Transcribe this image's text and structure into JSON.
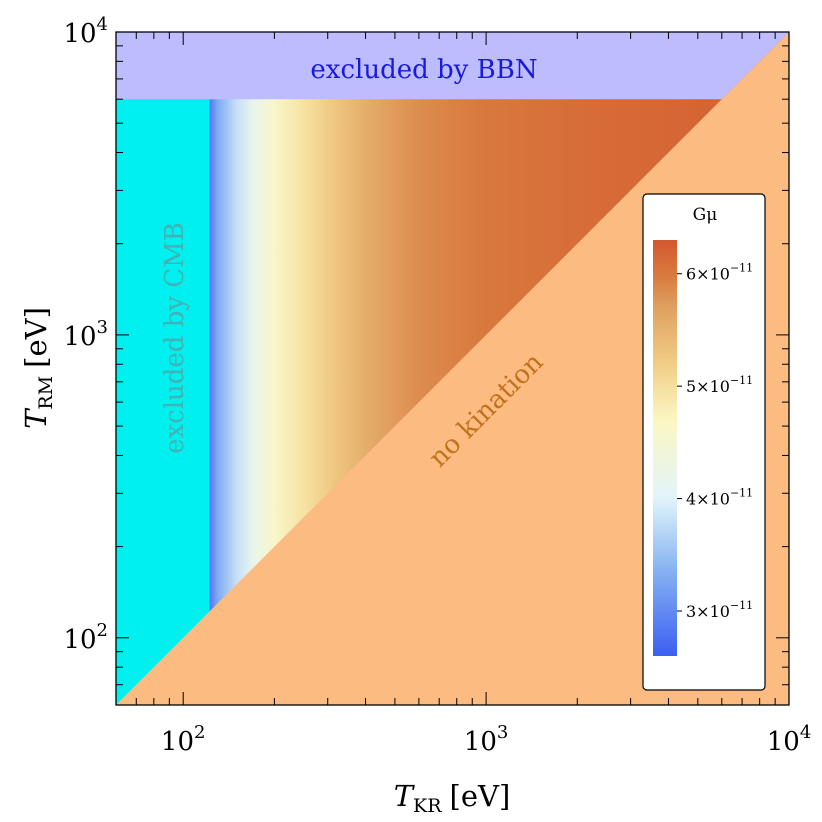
{
  "chart_data": {
    "type": "heatmap",
    "xlabel": {
      "main": "T",
      "sub": "KR",
      "unit": "[eV]"
    },
    "ylabel": {
      "main": "T",
      "sub": "RM",
      "unit": "[eV]"
    },
    "x_scale": "log",
    "y_scale": "log",
    "xlim": [
      60,
      10000
    ],
    "ylim": [
      60,
      10000
    ],
    "x_ticks": [
      {
        "value": 100,
        "base": "10",
        "exp": "2"
      },
      {
        "value": 1000,
        "base": "10",
        "exp": "3"
      },
      {
        "value": 10000,
        "base": "10",
        "exp": "4"
      }
    ],
    "y_ticks": [
      {
        "value": 100,
        "base": "10",
        "exp": "2"
      },
      {
        "value": 1000,
        "base": "10",
        "exp": "3"
      },
      {
        "value": 10000,
        "base": "10",
        "exp": "4"
      }
    ],
    "regions": {
      "bbn": {
        "label": "excluded by BBN",
        "y_min": 6000,
        "color": "#bcbcff",
        "text_color": "#1a1adb"
      },
      "cmb": {
        "label": "excluded by CMB",
        "x_max": 122,
        "color": "#00f0f0",
        "text_color": "#3fb4b4"
      },
      "no_kination": {
        "label": "no kination",
        "condition": "T_RM < T_KR",
        "color": "#fcbb80",
        "text_color": "#c2711c"
      }
    },
    "colorbar": {
      "title": "Gμ",
      "min": 2.6e-11,
      "max": 6.3e-11,
      "ticks": [
        {
          "value": 3e-11,
          "mant": "3",
          "exp": "−11"
        },
        {
          "value": 4e-11,
          "mant": "4",
          "exp": "−11"
        },
        {
          "value": 5e-11,
          "mant": "5",
          "exp": "−11"
        },
        {
          "value": 6e-11,
          "mant": "6",
          "exp": "−11"
        }
      ],
      "gradient_stops": [
        {
          "value": 2.6e-11,
          "color": "#3b5ff2"
        },
        {
          "value": 3.4e-11,
          "color": "#8ab6f2"
        },
        {
          "value": 4e-11,
          "color": "#e2f4fb"
        },
        {
          "value": 4.7e-11,
          "color": "#fcf6c2"
        },
        {
          "value": 5.2e-11,
          "color": "#f0cd86"
        },
        {
          "value": 5.7e-11,
          "color": "#e0a060"
        },
        {
          "value": 6e-11,
          "color": "#d8783e"
        },
        {
          "value": 6.3e-11,
          "color": "#d4582e"
        }
      ]
    },
    "field": {
      "description_key": "Gmu(T_KR)",
      "x_points": [
        122,
        130,
        150,
        170,
        200,
        250,
        300,
        400,
        600,
        1000,
        2000,
        6000
      ],
      "gmu_values": [
        2.8e-11,
        3.3e-11,
        3.8e-11,
        4.2e-11,
        4.6e-11,
        4.95e-11,
        5.2e-11,
        5.55e-11,
        5.85e-11,
        6e-11,
        6.1e-11,
        6.2e-11
      ]
    }
  }
}
